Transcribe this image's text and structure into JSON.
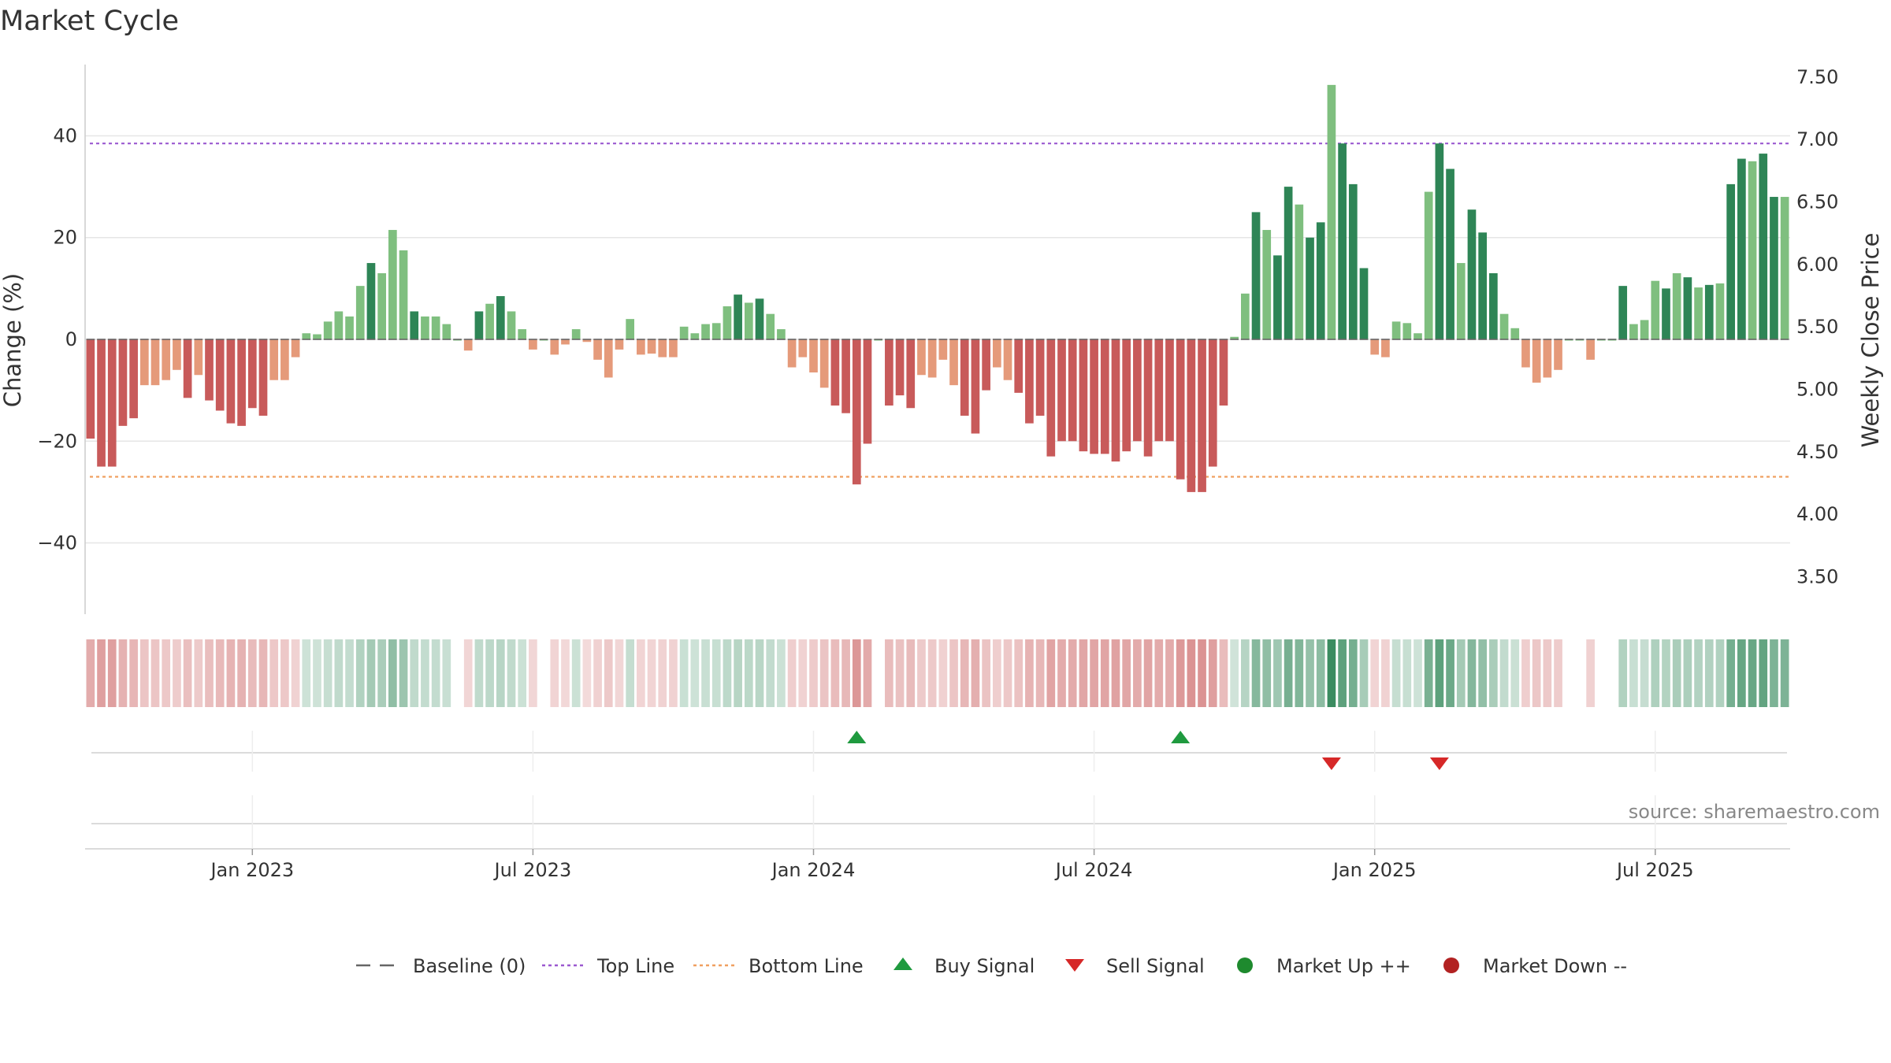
{
  "chart_data": {
    "type": "bar",
    "title": "Market Cycle",
    "ylabel": "Change (%)",
    "y2label": "Weekly Close Price",
    "source": "source: sharemaestro.com",
    "ylim": [
      -54,
      54
    ],
    "y2lim": [
      3.2,
      7.6
    ],
    "yticks": [
      {
        "v": 40,
        "label": "40"
      },
      {
        "v": 20,
        "label": "20"
      },
      {
        "v": 0,
        "label": "0"
      },
      {
        "v": -20,
        "label": "−20"
      },
      {
        "v": -40,
        "label": "−40"
      }
    ],
    "y2ticks": [
      "7.50",
      "7.00",
      "6.50",
      "6.00",
      "5.50",
      "5.00",
      "4.50",
      "4.00",
      "3.50"
    ],
    "top_line": 38.5,
    "bottom_line": -27,
    "x_ticks": [
      {
        "index": 15,
        "label": "Jan 2023"
      },
      {
        "index": 41,
        "label": "Jul 2023"
      },
      {
        "index": 67,
        "label": "Jan 2024"
      },
      {
        "index": 93,
        "label": "Jul 2024"
      },
      {
        "index": 119,
        "label": "Jan 2025"
      },
      {
        "index": 145,
        "label": "Jul 2025"
      }
    ],
    "values": [
      -19.5,
      -25,
      -25,
      -17,
      -15.5,
      -9,
      -9,
      -8,
      -6,
      -11.5,
      -7,
      -12,
      -14,
      -16.5,
      -17,
      -13.5,
      -15,
      -8,
      -8,
      -3.5,
      1.2,
      1,
      3.5,
      5.5,
      4.5,
      10.5,
      15,
      13,
      21.5,
      17.5,
      5.5,
      4.5,
      4.5,
      3,
      0,
      -2.2,
      5.5,
      7,
      8.5,
      5.5,
      2,
      -2,
      0,
      -3,
      -1,
      2,
      -0.5,
      -4,
      -7.5,
      -2,
      4,
      -3,
      -2.8,
      -3.5,
      -3.5,
      2.5,
      1.2,
      3,
      3.2,
      6.5,
      8.8,
      7.2,
      8,
      5,
      2,
      -5.5,
      -3.5,
      -6.5,
      -9.5,
      -13,
      -14.5,
      -28.5,
      -20.5,
      0,
      -13,
      -11,
      -13.5,
      -7,
      -7.5,
      -4,
      -9,
      -15,
      -18.5,
      -10,
      -5.5,
      -8,
      -10.5,
      -16.5,
      -15,
      -23,
      -20,
      -20,
      -22,
      -22.5,
      -22.5,
      -24,
      -22,
      -20,
      -23,
      -20,
      -20,
      -27.5,
      -30,
      -30,
      -25,
      -13,
      0.5,
      9,
      25,
      21.5,
      16.5,
      30,
      26.5,
      20,
      23,
      50,
      38.5,
      30.5,
      14,
      -3,
      -3.5,
      3.5,
      3.2,
      1.2,
      29,
      38.5,
      33.5,
      15,
      25.5,
      21,
      13,
      5,
      2.2,
      -5.5,
      -8.5,
      -7.5,
      -6,
      0,
      0,
      -4,
      0,
      0,
      10.5,
      3,
      3.8,
      11.5,
      10,
      13,
      12.2,
      10.2,
      10.7,
      11,
      30.5,
      35.5,
      35,
      36.5,
      28,
      28
    ],
    "buy_signals": [
      71,
      101
    ],
    "sell_signals": [
      115,
      125
    ],
    "series": [
      {
        "name": "Baseline (0)"
      },
      {
        "name": "Top Line"
      },
      {
        "name": "Bottom Line"
      },
      {
        "name": "Buy Signal"
      },
      {
        "name": "Sell Signal"
      },
      {
        "name": "Market Up ++"
      },
      {
        "name": "Market Down --"
      }
    ],
    "colors": {
      "strong_up": "#2e8556",
      "mild_up": "#7fbf7f",
      "strong_down": "#c85a5a",
      "mild_down": "#e59a7a",
      "top_line": "#9b59d0",
      "bottom_line": "#f0a060",
      "buy": "#1f9a3f",
      "sell": "#d62828",
      "market_up": "#1e8a2e",
      "market_down": "#b22222",
      "baseline": "#666666"
    },
    "legend_position": "bottom-center"
  }
}
